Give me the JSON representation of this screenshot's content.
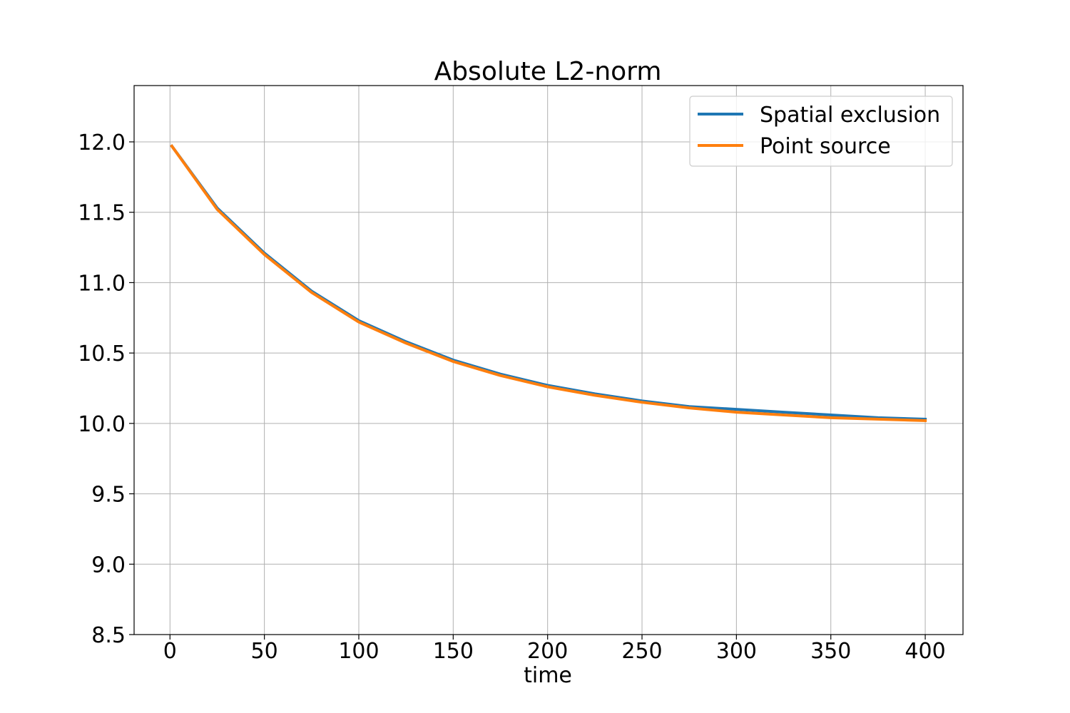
{
  "chart_data": {
    "type": "line",
    "title": "Absolute L2-norm",
    "xlabel": "time",
    "ylabel": "",
    "xlim": [
      -19,
      420
    ],
    "ylim": [
      8.5,
      12.4
    ],
    "xticks": [
      0,
      50,
      100,
      150,
      200,
      250,
      300,
      350,
      400
    ],
    "xtick_labels": [
      "0",
      "50",
      "100",
      "150",
      "200",
      "250",
      "300",
      "350",
      "400"
    ],
    "yticks": [
      8.5,
      9.0,
      9.5,
      10.0,
      10.5,
      11.0,
      11.5,
      12.0
    ],
    "ytick_labels": [
      "8.5",
      "9.0",
      "9.5",
      "10.0",
      "10.5",
      "11.0",
      "11.5",
      "12.0"
    ],
    "grid": true,
    "legend_position": "top-right",
    "x": [
      1,
      25,
      50,
      75,
      100,
      125,
      150,
      175,
      200,
      225,
      250,
      275,
      300,
      325,
      350,
      375,
      400
    ],
    "series": [
      {
        "name": "Spatial exclusion",
        "color": "#1f77b4",
        "values": [
          11.97,
          11.53,
          11.21,
          10.94,
          10.73,
          10.58,
          10.45,
          10.35,
          10.27,
          10.21,
          10.16,
          10.12,
          10.1,
          10.08,
          10.06,
          10.04,
          10.03
        ]
      },
      {
        "name": "Point source",
        "color": "#ff7f0e",
        "values": [
          11.97,
          11.52,
          11.2,
          10.93,
          10.72,
          10.57,
          10.44,
          10.34,
          10.26,
          10.2,
          10.15,
          10.11,
          10.08,
          10.06,
          10.04,
          10.03,
          10.02
        ]
      }
    ]
  }
}
